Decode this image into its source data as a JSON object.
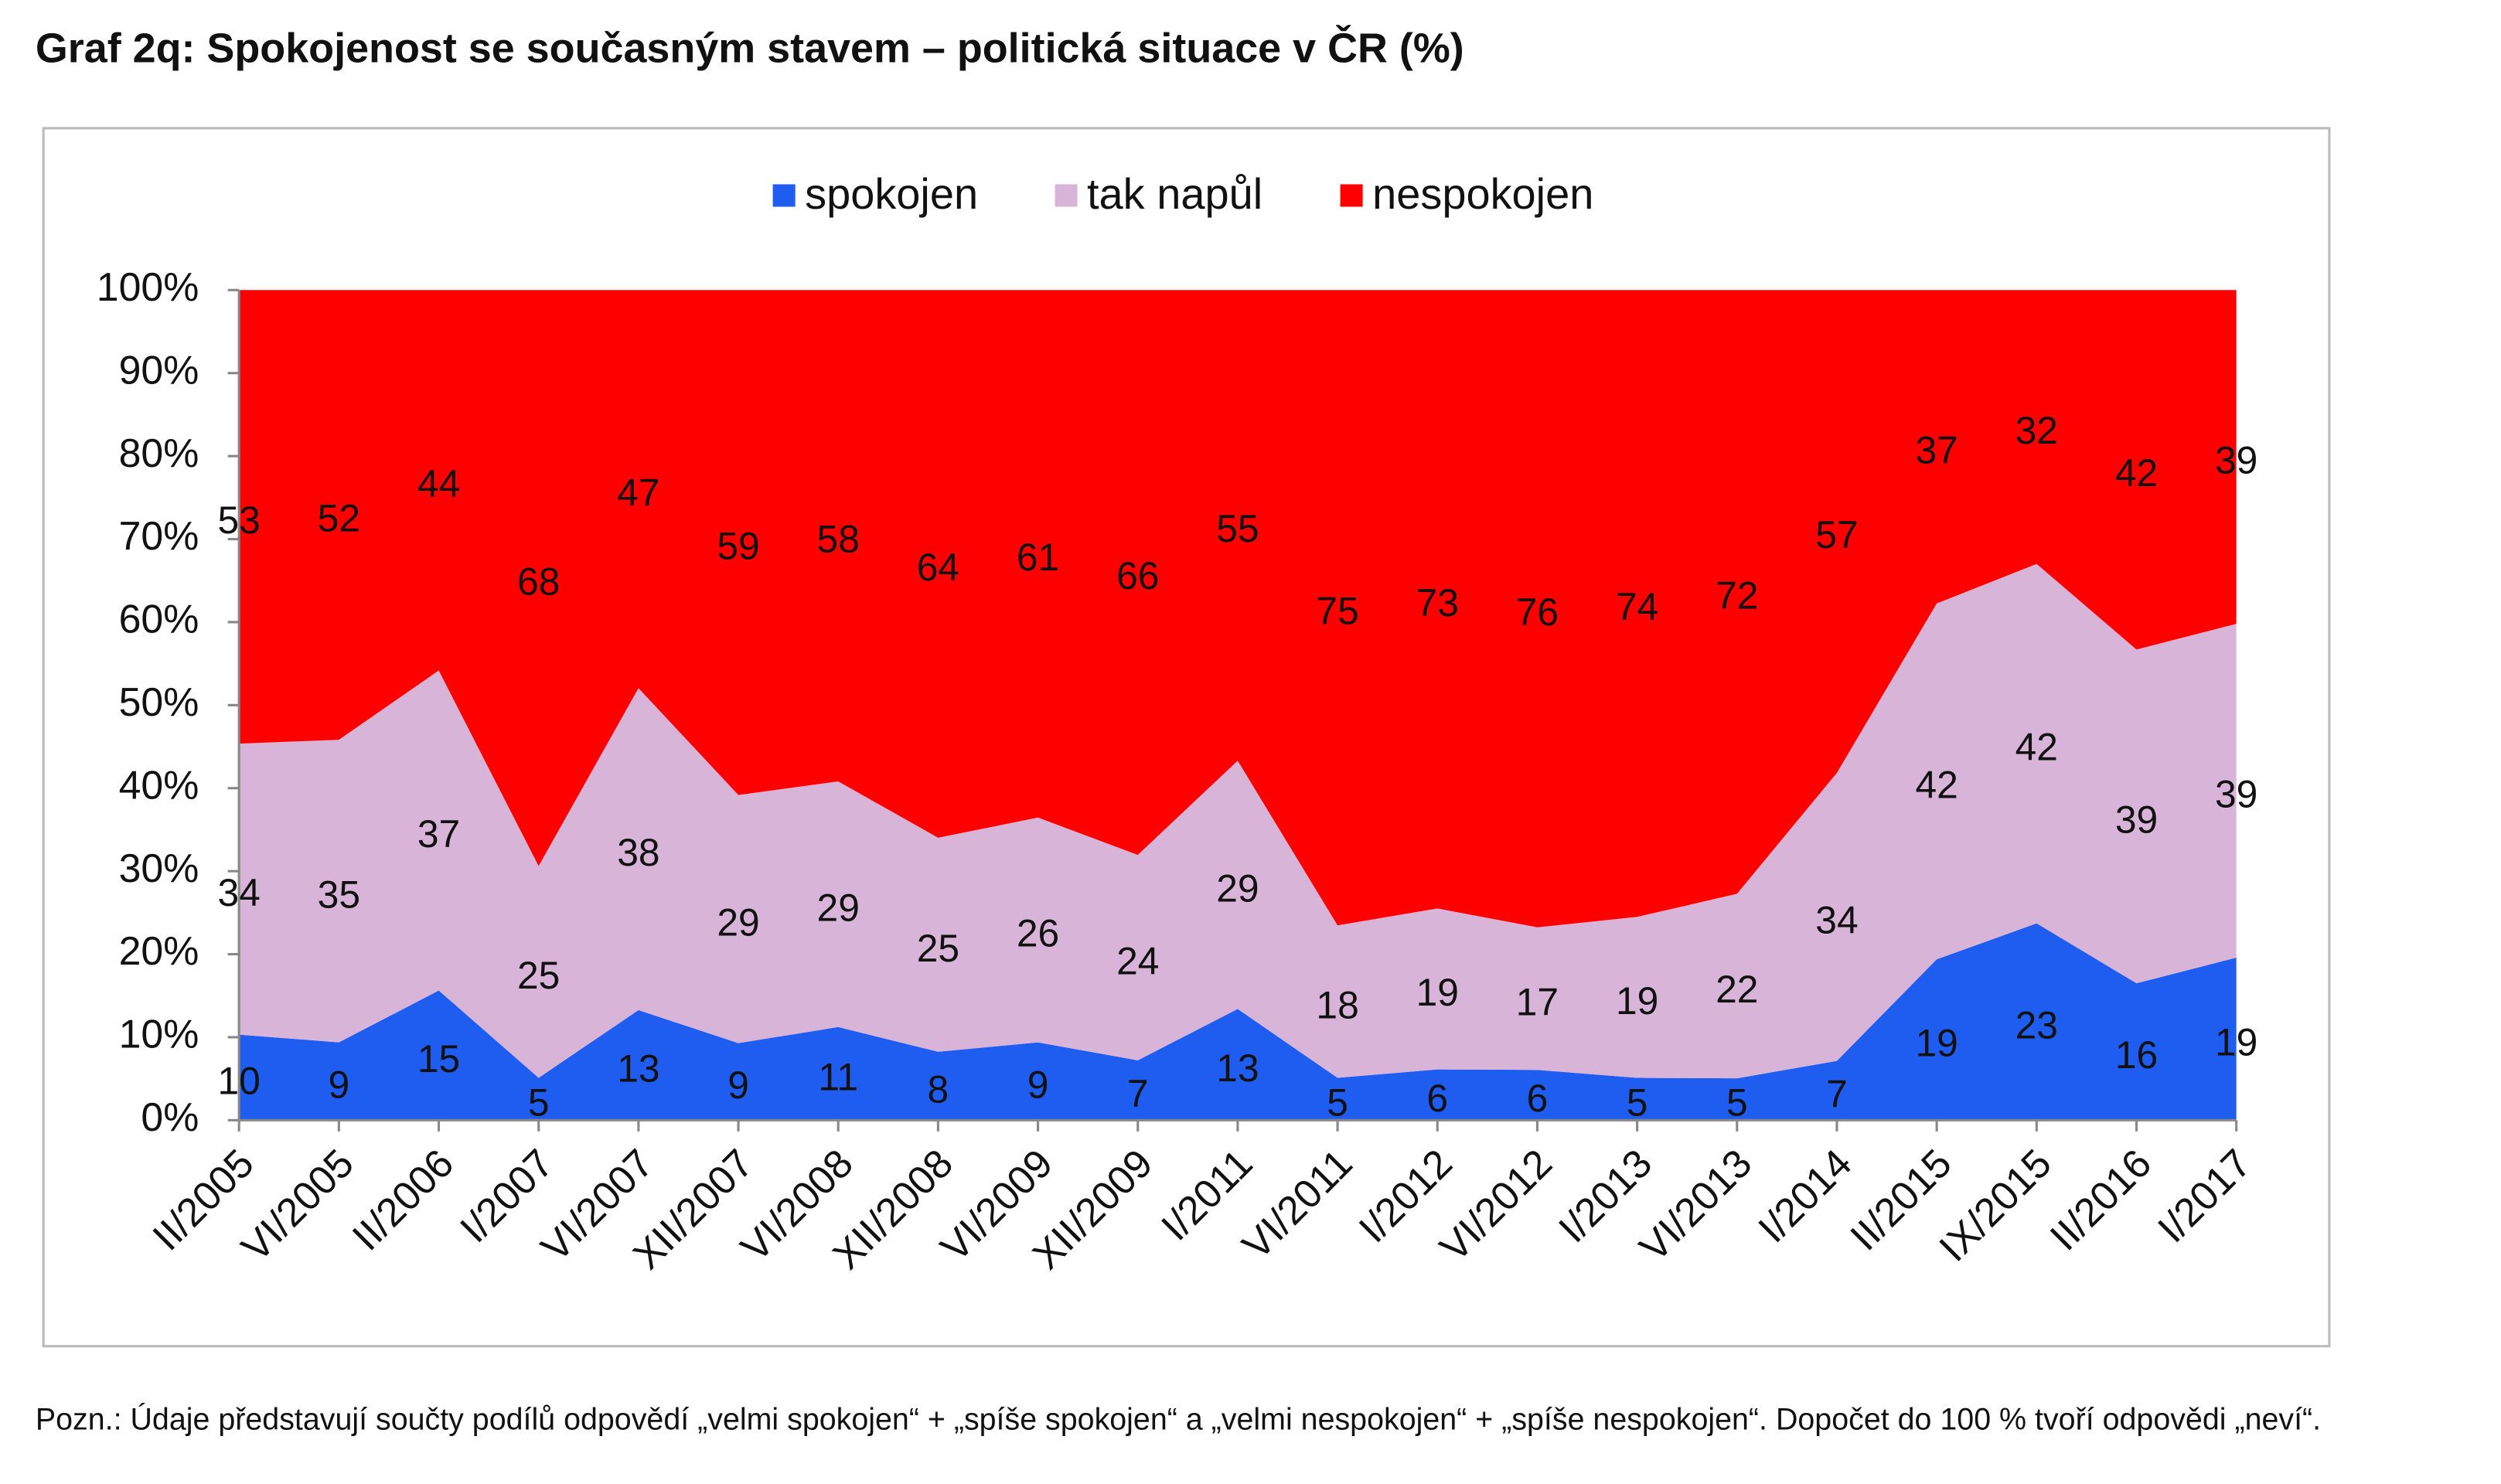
{
  "chart_data": {
    "type": "area",
    "stacked": "percent",
    "title": "Graf 2q: Spokojenost se současným stavem – politická situace v ČR (%)",
    "note": "Pozn.: Údaje představují součty podílů odpovědí „velmi spokojen“ + „spíše spokojen“ a „velmi nespokojen“ + „spíše nespokojen“. Dopočet do 100 % tvoří odpovědi „neví“.",
    "categories": [
      "II/2005",
      "VI/2005",
      "II/2006",
      "I/2007",
      "VI/2007",
      "XII/2007",
      "VI/2008",
      "XII/2008",
      "VI/2009",
      "XII/2009",
      "I/2011",
      "VI/2011",
      "I/2012",
      "VI/2012",
      "I/2013",
      "VI/2013",
      "I/2014",
      "II/2015",
      "IX/2015",
      "II/2016",
      "I/2017"
    ],
    "series": [
      {
        "name": "spokojen",
        "color": "#1f5cf0",
        "values": [
          10,
          9,
          15,
          5,
          13,
          9,
          11,
          8,
          9,
          7,
          13,
          5,
          6,
          6,
          5,
          5,
          7,
          19,
          23,
          16,
          19
        ]
      },
      {
        "name": "tak napůl",
        "color": "#d8b4d8",
        "values": [
          34,
          35,
          37,
          25,
          38,
          29,
          29,
          25,
          26,
          24,
          29,
          18,
          19,
          17,
          19,
          22,
          34,
          42,
          42,
          39,
          39
        ]
      },
      {
        "name": "nespokojen",
        "color": "#ff0000",
        "values": [
          53,
          52,
          44,
          68,
          47,
          59,
          58,
          64,
          61,
          66,
          55,
          75,
          73,
          76,
          74,
          72,
          57,
          37,
          32,
          42,
          39
        ]
      }
    ],
    "ylim": [
      0,
      100
    ],
    "yticks": [
      {
        "value": 0,
        "label": "0%"
      },
      {
        "value": 10,
        "label": "10%"
      },
      {
        "value": 20,
        "label": "20%"
      },
      {
        "value": 30,
        "label": "30%"
      },
      {
        "value": 40,
        "label": "40%"
      },
      {
        "value": 50,
        "label": "50%"
      },
      {
        "value": 60,
        "label": "60%"
      },
      {
        "value": 70,
        "label": "70%"
      },
      {
        "value": 80,
        "label": "80%"
      },
      {
        "value": 90,
        "label": "90%"
      },
      {
        "value": 100,
        "label": "100%"
      }
    ],
    "legend": "top"
  }
}
